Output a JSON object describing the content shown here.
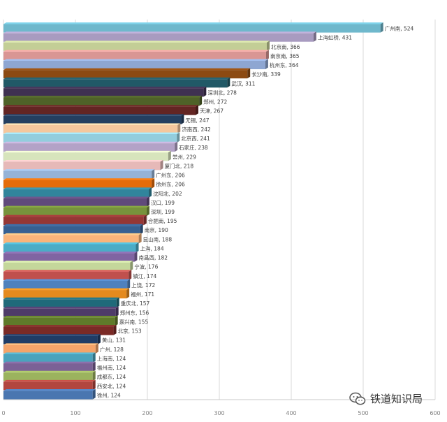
{
  "chart_data": {
    "type": "bar",
    "orientation": "horizontal",
    "title": "",
    "xlabel": "",
    "ylabel": "",
    "xlim": [
      0,
      600
    ],
    "x_ticks": [
      0,
      100,
      200,
      300,
      400,
      500,
      600
    ],
    "grid": true,
    "bars": [
      {
        "label": "广州南",
        "value": 524,
        "color": "#6FB8CC"
      },
      {
        "label": "上海虹桥",
        "value": 431,
        "color": "#A89BC0"
      },
      {
        "label": "北京南",
        "value": 366,
        "color": "#C3CE96"
      },
      {
        "label": "南京南",
        "value": 365,
        "color": "#D99694"
      },
      {
        "label": "杭州东",
        "value": 364,
        "color": "#8EA6D2"
      },
      {
        "label": "长沙南",
        "value": 339,
        "color": "#8C4A12"
      },
      {
        "label": "武汉",
        "value": 311,
        "color": "#215967"
      },
      {
        "label": "深圳北",
        "value": 278,
        "color": "#3F3151"
      },
      {
        "label": "郑州",
        "value": 272,
        "color": "#4F6228"
      },
      {
        "label": "天津",
        "value": 267,
        "color": "#632523"
      },
      {
        "label": "无锡",
        "value": 247,
        "color": "#243F60"
      },
      {
        "label": "济南西",
        "value": 242,
        "color": "#F5C79D"
      },
      {
        "label": "北京西",
        "value": 241,
        "color": "#93CDDD"
      },
      {
        "label": "石家庄",
        "value": 238,
        "color": "#B3A2C7"
      },
      {
        "label": "常州",
        "value": 229,
        "color": "#D7E4BC"
      },
      {
        "label": "厦门北",
        "value": 218,
        "color": "#E6B9B8"
      },
      {
        "label": "广州东",
        "value": 206,
        "color": "#95B3D7"
      },
      {
        "label": "徐州东",
        "value": 206,
        "color": "#E46C0A"
      },
      {
        "label": "沈阳北",
        "value": 202,
        "color": "#31859C"
      },
      {
        "label": "汉口",
        "value": 199,
        "color": "#604A7B"
      },
      {
        "label": "深圳",
        "value": 199,
        "color": "#77933C"
      },
      {
        "label": "合肥南",
        "value": 195,
        "color": "#953735"
      },
      {
        "label": "南京",
        "value": 190,
        "color": "#366092"
      },
      {
        "label": "昆山南",
        "value": 188,
        "color": "#F9B47A"
      },
      {
        "label": "上海",
        "value": 184,
        "color": "#4BACC6"
      },
      {
        "label": "南昌西",
        "value": 182,
        "color": "#8064A2"
      },
      {
        "label": "宁波",
        "value": 176,
        "color": "#C4D79B"
      },
      {
        "label": "镇江",
        "value": 174,
        "color": "#C0504D"
      },
      {
        "label": "上饶",
        "value": 172,
        "color": "#4F81BD"
      },
      {
        "label": "福州",
        "value": 171,
        "color": "#E48A1E"
      },
      {
        "label": "重庆北",
        "value": 157,
        "color": "#1F6A7A"
      },
      {
        "label": "郑州东",
        "value": 156,
        "color": "#4E3B69"
      },
      {
        "label": "嘉兴南",
        "value": 155,
        "color": "#5F7A2A"
      },
      {
        "label": "北京",
        "value": 153,
        "color": "#7A2A26"
      },
      {
        "label": "黄山",
        "value": 131,
        "color": "#1F3C66"
      },
      {
        "label": "广州",
        "value": 128,
        "color": "#F4A46A"
      },
      {
        "label": "上海南",
        "value": 124,
        "color": "#4AA3BD"
      },
      {
        "label": "福州南",
        "value": 124,
        "color": "#7B6196"
      },
      {
        "label": "成都东",
        "value": 124,
        "color": "#9BB35E"
      },
      {
        "label": "西安北",
        "value": 124,
        "color": "#B2463F"
      },
      {
        "label": "徐州",
        "value": 124,
        "color": "#4A76B0"
      }
    ]
  },
  "watermark": {
    "text": "铁道知识局",
    "icon": "wechat-icon"
  }
}
